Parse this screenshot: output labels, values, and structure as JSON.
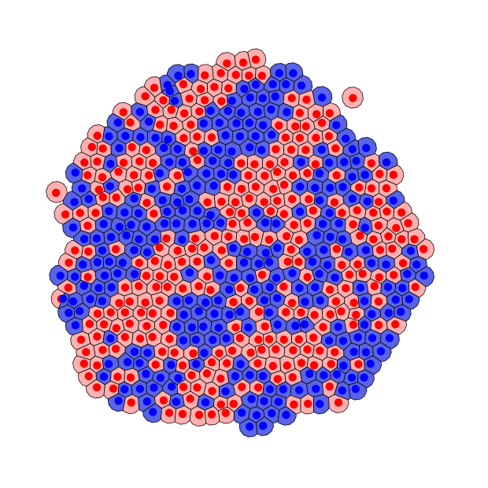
{
  "figure": {
    "background_color": "#ffffff",
    "subject": "voronoi-cell-tissue",
    "populations": [
      {
        "name": "blue",
        "cell_fill": "#5a64e6",
        "nucleus": "#0000ff"
      },
      {
        "name": "red",
        "cell_fill": "#ffb0b0",
        "nucleus": "#ff0000"
      }
    ],
    "edge_color": "#000000",
    "approx_cell_count": 600,
    "tissue_shape": "roughly-round-colony"
  }
}
